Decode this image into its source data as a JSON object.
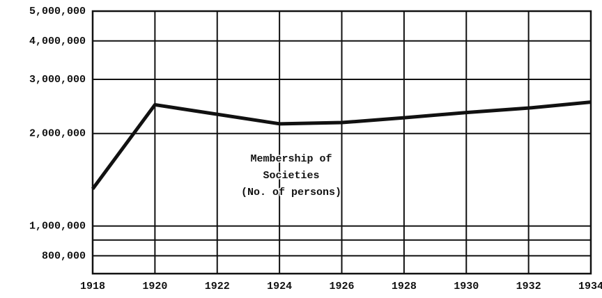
{
  "chart_data": {
    "type": "line",
    "annotation": [
      "Membership of",
      "Societies",
      "(No. of persons)"
    ],
    "x": [
      1918,
      1920,
      1924,
      1926,
      1928,
      1930,
      1932,
      1934
    ],
    "values": [
      1320000,
      2480000,
      2150000,
      2170000,
      2250000,
      2340000,
      2420000,
      2530000
    ],
    "color": "#111111",
    "xlim": [
      1918,
      1934
    ],
    "xticks": [
      1918,
      1920,
      1922,
      1924,
      1926,
      1928,
      1930,
      1932,
      1934
    ],
    "ylim": [
      700000,
      5000000
    ],
    "yscale": "log",
    "yticks": [
      {
        "value": 800000,
        "label": "800,000"
      },
      {
        "value": 1000000,
        "label": "1,000,000"
      },
      {
        "value": 2000000,
        "label": "2,000,000"
      },
      {
        "value": 3000000,
        "label": "3,000,000"
      },
      {
        "value": 4000000,
        "label": "4,000,000"
      },
      {
        "value": 5000000,
        "label": "5,000,000"
      }
    ],
    "minor_yticks": [
      900000
    ],
    "grid": true
  }
}
